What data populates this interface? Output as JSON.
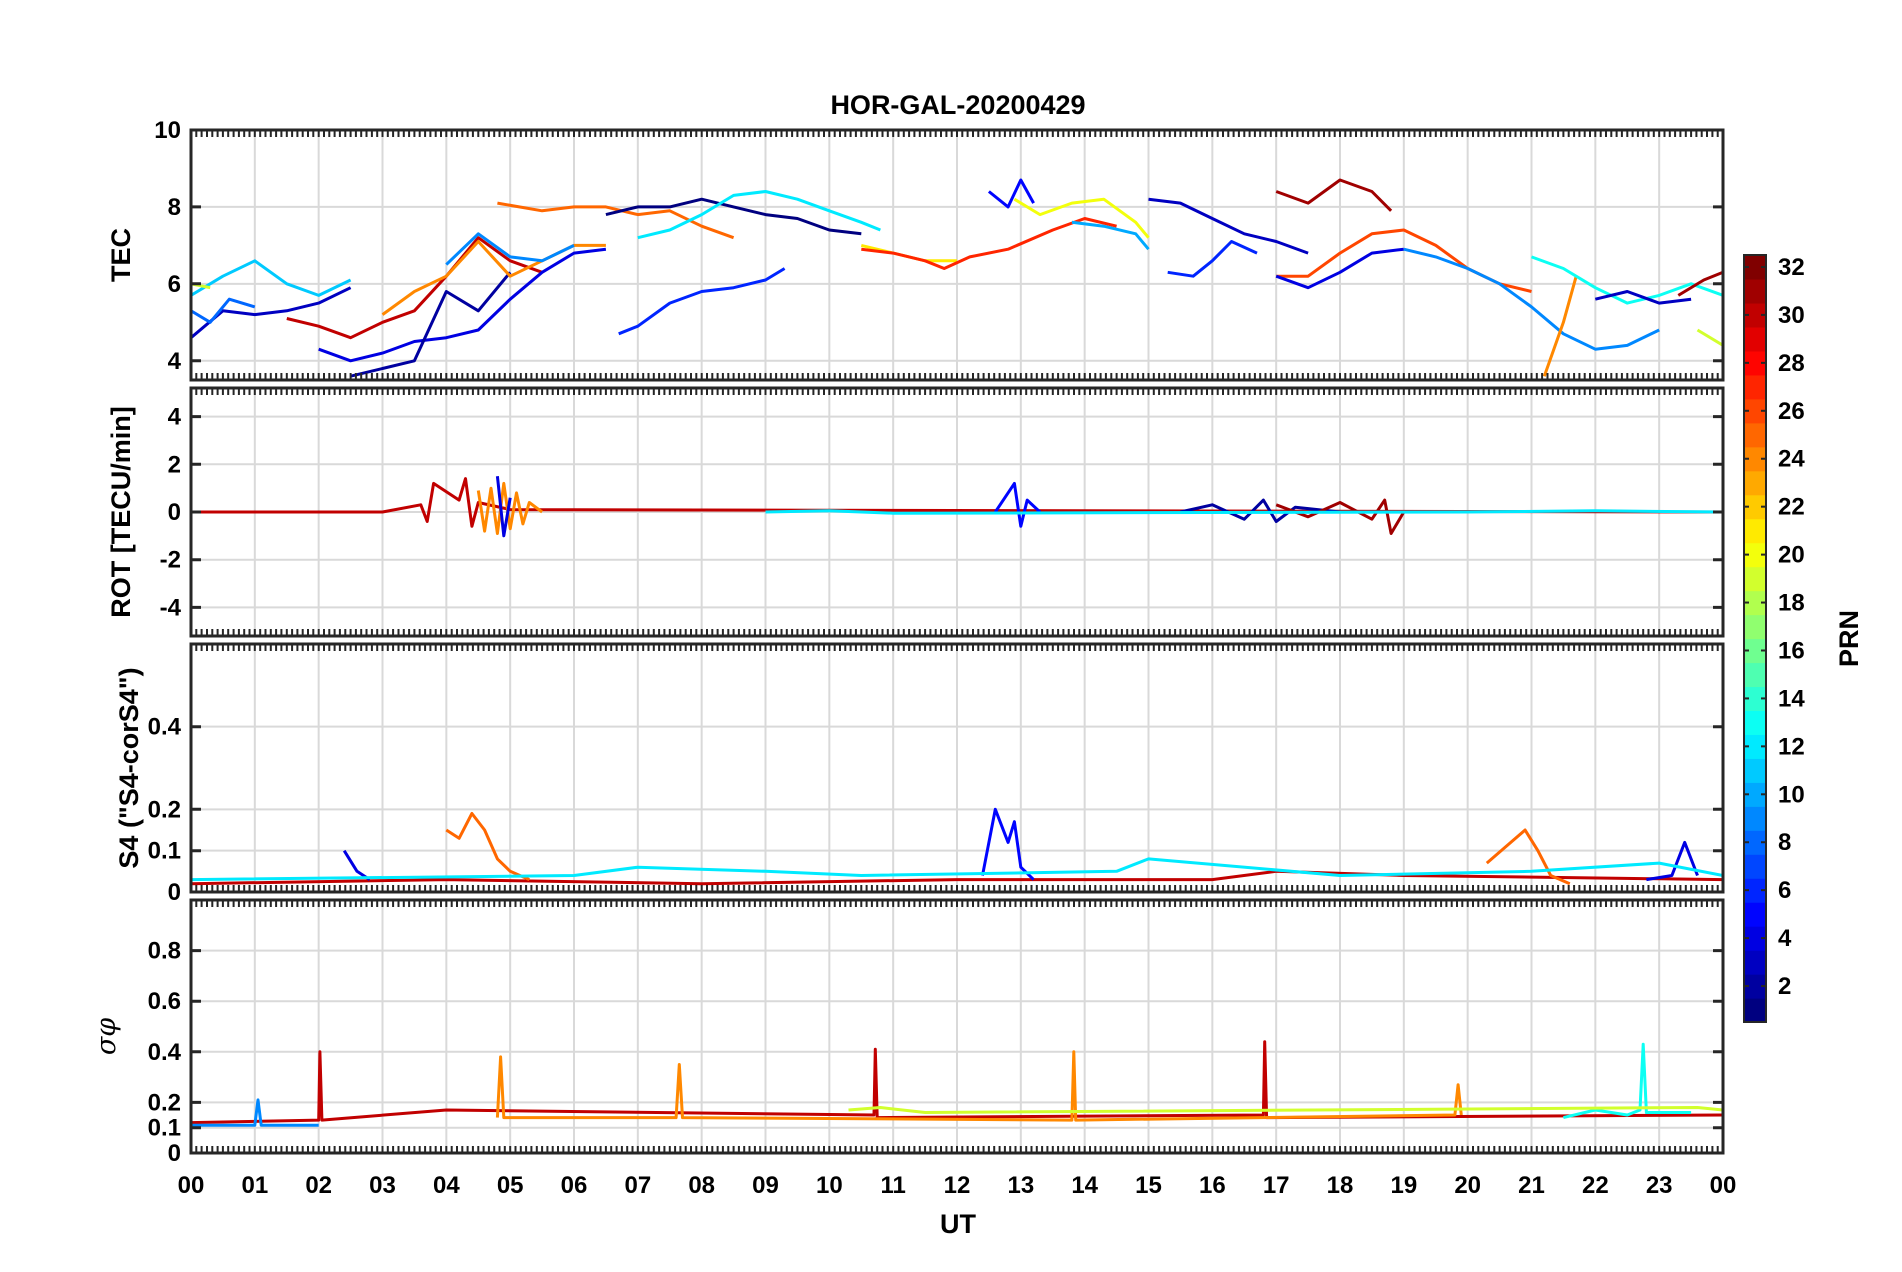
{
  "chart_data": {
    "type": "line",
    "title": "HOR-GAL-20200429",
    "xlabel": "UT",
    "x_ticks": [
      "00",
      "01",
      "02",
      "03",
      "04",
      "05",
      "06",
      "07",
      "08",
      "09",
      "10",
      "11",
      "12",
      "13",
      "14",
      "15",
      "16",
      "17",
      "18",
      "19",
      "20",
      "21",
      "22",
      "23",
      "00"
    ],
    "xlim": [
      0,
      24
    ],
    "grid": true,
    "colorbar": {
      "label": "PRN",
      "colormap": "jet",
      "range": [
        1,
        32
      ],
      "ticks": [
        "2",
        "4",
        "6",
        "8",
        "10",
        "12",
        "14",
        "16",
        "18",
        "20",
        "22",
        "24",
        "26",
        "28",
        "30",
        "32"
      ]
    },
    "panels": [
      {
        "id": "tec",
        "ylabel": "TEC",
        "ylim": [
          3.5,
          10
        ],
        "yticks": [
          "4",
          "6",
          "8",
          "10"
        ],
        "series": [
          {
            "prn": 3,
            "x": [
              0,
              0.5,
              1.0,
              1.5,
              2.0,
              2.5
            ],
            "y": [
              4.6,
              5.3,
              5.2,
              5.3,
              5.5,
              5.9
            ]
          },
          {
            "prn": 11,
            "x": [
              0,
              0.5,
              1.0,
              1.5,
              2.0,
              2.5
            ],
            "y": [
              5.7,
              6.2,
              6.6,
              6.0,
              5.7,
              6.1
            ]
          },
          {
            "prn": 8,
            "x": [
              0,
              0.3,
              0.6,
              1.0
            ],
            "y": [
              5.3,
              5.0,
              5.6,
              5.4
            ]
          },
          {
            "prn": 19,
            "x": [
              0,
              0.3
            ],
            "y": [
              6.0,
              5.9
            ]
          },
          {
            "prn": 30,
            "x": [
              1.5,
              2.0,
              2.5,
              3.0,
              3.5,
              4.0,
              4.5,
              5.0,
              5.5
            ],
            "y": [
              5.1,
              4.9,
              4.6,
              5.0,
              5.3,
              6.2,
              7.2,
              6.6,
              6.3
            ]
          },
          {
            "prn": 4,
            "x": [
              2.0,
              2.5,
              3.0,
              3.5,
              4.0,
              4.5,
              5.0,
              5.5,
              6.0,
              6.5
            ],
            "y": [
              4.3,
              4.0,
              4.2,
              4.5,
              4.6,
              4.8,
              5.6,
              6.3,
              6.8,
              6.9
            ]
          },
          {
            "prn": 2,
            "x": [
              2.5,
              3.0,
              3.5,
              4.0,
              4.5,
              5.0
            ],
            "y": [
              3.6,
              3.8,
              4.0,
              5.8,
              5.3,
              6.3
            ]
          },
          {
            "prn": 24,
            "x": [
              3.0,
              3.5,
              4.0,
              4.5,
              5.0,
              5.5,
              6.0,
              6.5
            ],
            "y": [
              5.2,
              5.8,
              6.2,
              7.1,
              6.2,
              6.6,
              7.0,
              7.0
            ]
          },
          {
            "prn": 9,
            "x": [
              4.0,
              4.5,
              5.0,
              5.5,
              6.0
            ],
            "y": [
              6.5,
              7.3,
              6.7,
              6.6,
              7.0
            ]
          },
          {
            "prn": 25,
            "x": [
              4.8,
              5.5,
              6.0,
              6.5,
              7.0,
              7.5,
              8.0,
              8.5
            ],
            "y": [
              8.1,
              7.9,
              8.0,
              8.0,
              7.8,
              7.9,
              7.5,
              7.2
            ]
          },
          {
            "prn": 6,
            "x": [
              6.7,
              7.0,
              7.5,
              8.0,
              8.5,
              9.0,
              9.3
            ],
            "y": [
              4.7,
              4.9,
              5.5,
              5.8,
              5.9,
              6.1,
              6.4
            ]
          },
          {
            "prn": 1,
            "x": [
              6.5,
              7.0,
              7.5,
              8.0,
              8.5,
              9.0,
              9.5,
              10.0,
              10.5
            ],
            "y": [
              7.8,
              8.0,
              8.0,
              8.2,
              8.0,
              7.8,
              7.7,
              7.4,
              7.3
            ]
          },
          {
            "prn": 12,
            "x": [
              7.0,
              7.5,
              8.0,
              8.5,
              9.0,
              9.5,
              10.0,
              10.5,
              10.8
            ],
            "y": [
              7.2,
              7.4,
              7.8,
              8.3,
              8.4,
              8.2,
              7.9,
              7.6,
              7.4
            ]
          },
          {
            "prn": 21,
            "x": [
              10.5,
              11.0,
              11.5,
              12.0
            ],
            "y": [
              7.0,
              6.8,
              6.6,
              6.6
            ]
          },
          {
            "prn": 27,
            "x": [
              10.5,
              11.0,
              11.5,
              11.8,
              12.2,
              12.8,
              13.5,
              14.0,
              14.5
            ],
            "y": [
              6.9,
              6.8,
              6.6,
              6.4,
              6.7,
              6.9,
              7.4,
              7.7,
              7.5
            ]
          },
          {
            "prn": 5,
            "x": [
              12.5,
              12.8,
              13.0,
              13.2
            ],
            "y": [
              8.4,
              8.0,
              8.7,
              8.1
            ]
          },
          {
            "prn": 20,
            "x": [
              12.9,
              13.3,
              13.8,
              14.3,
              14.8,
              15.0
            ],
            "y": [
              8.2,
              7.8,
              8.1,
              8.2,
              7.6,
              7.2
            ]
          },
          {
            "prn": 10,
            "x": [
              13.8,
              14.3,
              14.8,
              15.0
            ],
            "y": [
              7.6,
              7.5,
              7.3,
              6.9
            ]
          },
          {
            "prn": 3,
            "x": [
              15.0,
              15.5,
              16.0,
              16.5,
              17.0,
              17.5
            ],
            "y": [
              8.2,
              8.1,
              7.7,
              7.3,
              7.1,
              6.8
            ]
          },
          {
            "prn": 6,
            "x": [
              15.3,
              15.7,
              16.0,
              16.3,
              16.7
            ],
            "y": [
              6.3,
              6.2,
              6.6,
              7.1,
              6.8
            ]
          },
          {
            "prn": 31,
            "x": [
              17.0,
              17.5,
              18.0,
              18.5,
              18.8
            ],
            "y": [
              8.4,
              8.1,
              8.7,
              8.4,
              7.9
            ]
          },
          {
            "prn": 26,
            "x": [
              17.0,
              17.5,
              18.0,
              18.5,
              19.0,
              19.5,
              20.0,
              20.5,
              21.0
            ],
            "y": [
              6.2,
              6.2,
              6.8,
              7.3,
              7.4,
              7.0,
              6.4,
              6.0,
              5.8
            ]
          },
          {
            "prn": 4,
            "x": [
              17.0,
              17.5,
              18.0,
              18.5,
              19.0
            ],
            "y": [
              6.2,
              5.9,
              6.3,
              6.8,
              6.9
            ]
          },
          {
            "prn": 9,
            "x": [
              19.0,
              19.5,
              20.0,
              20.5,
              21.0,
              21.5,
              22.0,
              22.5,
              23.0
            ],
            "y": [
              6.9,
              6.7,
              6.4,
              6.0,
              5.4,
              4.7,
              4.3,
              4.4,
              4.8
            ]
          },
          {
            "prn": 24,
            "x": [
              21.2,
              21.5,
              21.7
            ],
            "y": [
              3.6,
              5.0,
              6.2
            ]
          },
          {
            "prn": 13,
            "x": [
              21.0,
              21.5,
              22.0,
              22.5,
              23.0,
              23.5,
              24.0
            ],
            "y": [
              6.7,
              6.4,
              5.9,
              5.5,
              5.7,
              6.0,
              5.7
            ]
          },
          {
            "prn": 3,
            "x": [
              22.0,
              22.5,
              23.0,
              23.5
            ],
            "y": [
              5.6,
              5.8,
              5.5,
              5.6
            ]
          },
          {
            "prn": 31,
            "x": [
              23.3,
              23.7,
              24.0
            ],
            "y": [
              5.7,
              6.1,
              6.3
            ]
          },
          {
            "prn": 19,
            "x": [
              23.6,
              24.0
            ],
            "y": [
              4.8,
              4.4
            ]
          }
        ]
      },
      {
        "id": "rot",
        "ylabel": "ROT [TECU/min]",
        "ylim": [
          -5.2,
          5.2
        ],
        "yticks": [
          "-4",
          "-2",
          "0",
          "2",
          "4"
        ],
        "series": [
          {
            "prn": 30,
            "x": [
              0,
              3.0,
              3.6,
              3.7,
              3.8,
              4.2,
              4.3,
              4.4,
              4.5,
              5.0,
              24.0
            ],
            "y": [
              0,
              0,
              0.3,
              -0.4,
              1.2,
              0.5,
              1.4,
              -0.6,
              0.4,
              0.1,
              0
            ]
          },
          {
            "prn": 24,
            "x": [
              4.5,
              4.6,
              4.7,
              4.8,
              4.9,
              5.0,
              5.1,
              5.2,
              5.3,
              5.5
            ],
            "y": [
              0.9,
              -0.8,
              1.0,
              -0.9,
              1.2,
              -0.7,
              0.8,
              -0.5,
              0.4,
              0
            ]
          },
          {
            "prn": 4,
            "x": [
              4.8,
              4.9,
              5.0
            ],
            "y": [
              1.5,
              -1.0,
              0.6
            ]
          },
          {
            "prn": 5,
            "x": [
              12.6,
              12.9,
              13.0,
              13.1,
              13.3
            ],
            "y": [
              0,
              1.2,
              -0.6,
              0.5,
              0
            ]
          },
          {
            "prn": 2,
            "x": [
              15.5,
              16.0,
              16.5,
              16.8,
              17.0,
              17.3,
              18.0
            ],
            "y": [
              0,
              0.3,
              -0.3,
              0.5,
              -0.4,
              0.2,
              0
            ]
          },
          {
            "prn": 31,
            "x": [
              17.0,
              17.5,
              18.0,
              18.5,
              18.7,
              18.8,
              19.0
            ],
            "y": [
              0.3,
              -0.2,
              0.4,
              -0.3,
              0.5,
              -0.9,
              0
            ]
          },
          {
            "prn": 12,
            "x": [
              9.0,
              10.0,
              11.0,
              20.0,
              22.0,
              24.0
            ],
            "y": [
              0,
              0.05,
              -0.05,
              0,
              0.05,
              0
            ]
          }
        ]
      },
      {
        "id": "s4",
        "ylabel": "S4 (\"S4-corS4\")",
        "ylim": [
          0,
          0.6
        ],
        "yticks": [
          "0",
          "0.1",
          "0.2",
          "0.4"
        ],
        "series": [
          {
            "prn": 30,
            "x": [
              0,
              4.0,
              8.0,
              12.0,
              16.0,
              17.0,
              19.0,
              24.0
            ],
            "y": [
              0.02,
              0.03,
              0.02,
              0.03,
              0.03,
              0.05,
              0.04,
              0.03
            ]
          },
          {
            "prn": 25,
            "x": [
              4.0,
              4.2,
              4.4,
              4.6,
              4.8,
              5.0,
              5.3
            ],
            "y": [
              0.15,
              0.13,
              0.19,
              0.15,
              0.08,
              0.05,
              0.03
            ]
          },
          {
            "prn": 4,
            "x": [
              2.4,
              2.6,
              2.8
            ],
            "y": [
              0.1,
              0.05,
              0.03
            ]
          },
          {
            "prn": 5,
            "x": [
              12.4,
              12.6,
              12.8,
              12.9,
              13.0,
              13.2
            ],
            "y": [
              0.04,
              0.2,
              0.12,
              0.17,
              0.06,
              0.03
            ]
          },
          {
            "prn": 25,
            "x": [
              20.3,
              20.6,
              20.9,
              21.1,
              21.3,
              21.6
            ],
            "y": [
              0.07,
              0.11,
              0.15,
              0.1,
              0.04,
              0.02
            ]
          },
          {
            "prn": 4,
            "x": [
              22.8,
              23.2,
              23.4,
              23.6
            ],
            "y": [
              0.03,
              0.04,
              0.12,
              0.04
            ]
          },
          {
            "prn": 12,
            "x": [
              0,
              6.0,
              7.0,
              9.0,
              10.5,
              14.5,
              15.0,
              18.0,
              21.0,
              23.0,
              24.0
            ],
            "y": [
              0.03,
              0.04,
              0.06,
              0.05,
              0.04,
              0.05,
              0.08,
              0.04,
              0.05,
              0.07,
              0.04
            ]
          }
        ]
      },
      {
        "id": "sigma_phi",
        "ylabel": "σφ",
        "ylim": [
          0,
          1
        ],
        "yticks": [
          "0",
          "0.1",
          "0.2",
          "0.4",
          "0.6",
          "0.8"
        ],
        "series": [
          {
            "prn": 30,
            "x": [
              0,
              2.0,
              2.02,
              2.05,
              4.0,
              10.7,
              10.72,
              10.75,
              16.8,
              16.82,
              16.85,
              24.0
            ],
            "y": [
              0.12,
              0.13,
              0.4,
              0.13,
              0.17,
              0.15,
              0.41,
              0.14,
              0.15,
              0.44,
              0.14,
              0.15
            ]
          },
          {
            "prn": 24,
            "x": [
              4.8,
              4.85,
              4.9,
              7.6,
              7.65,
              7.7,
              13.8,
              13.83,
              13.86,
              19.8,
              19.85,
              19.9
            ],
            "y": [
              0.14,
              0.38,
              0.14,
              0.14,
              0.35,
              0.14,
              0.13,
              0.4,
              0.13,
              0.15,
              0.27,
              0.15
            ]
          },
          {
            "prn": 13,
            "x": [
              21.5,
              22.0,
              22.5,
              22.7,
              22.75,
              22.8,
              23.5
            ],
            "y": [
              0.14,
              0.17,
              0.15,
              0.17,
              0.43,
              0.16,
              0.16
            ]
          },
          {
            "prn": 9,
            "x": [
              0,
              1.0,
              1.05,
              1.1,
              2.0
            ],
            "y": [
              0.11,
              0.11,
              0.21,
              0.11,
              0.11
            ]
          },
          {
            "prn": 19,
            "x": [
              10.3,
              10.8,
              11.5,
              23.6,
              24.0
            ],
            "y": [
              0.17,
              0.18,
              0.16,
              0.18,
              0.17
            ]
          }
        ]
      }
    ]
  }
}
